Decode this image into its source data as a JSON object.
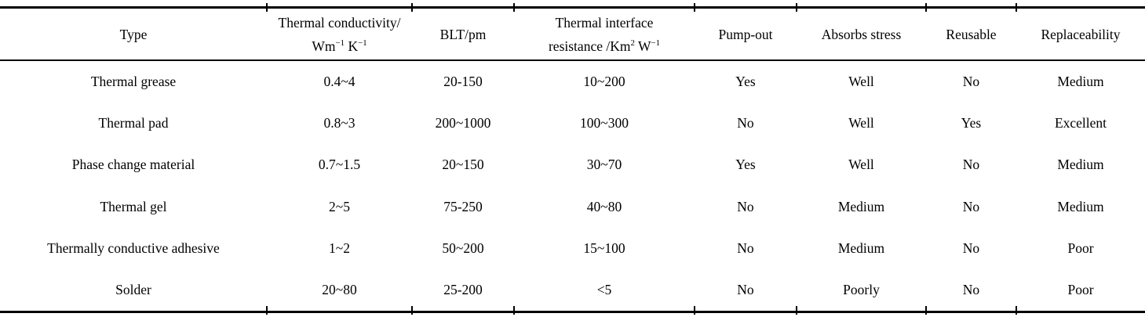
{
  "page": {
    "background_color": "#ffffff",
    "text_color": "#000000",
    "rule_color": "#000000"
  },
  "table": {
    "column_keys": [
      "type",
      "conductivity",
      "blt",
      "resistance",
      "pump_out",
      "absorbs_stress",
      "reusable",
      "replaceability"
    ],
    "header": {
      "type": "Type",
      "conductivity_line1": "Thermal conductivity/",
      "conductivity_unit_a": "Wm",
      "conductivity_sup_a": "−1",
      "conductivity_unit_b": " K",
      "conductivity_sup_b": "−1",
      "blt": "BLT/pm",
      "resistance_line1": "Thermal interface",
      "resistance_unit_a": "resistance /Km",
      "resistance_sup_a": "2",
      "resistance_unit_b": " W",
      "resistance_sup_b": "−1",
      "pump_out": "Pump-out",
      "absorbs_stress": "Absorbs stress",
      "reusable": "Reusable",
      "replaceability": "Replaceability"
    },
    "rows": [
      {
        "type": "Thermal grease",
        "conductivity": "0.4~4",
        "blt": "20-150",
        "resistance": "10~200",
        "pump_out": "Yes",
        "absorbs_stress": "Well",
        "reusable": "No",
        "replaceability": "Medium"
      },
      {
        "type": "Thermal pad",
        "conductivity": "0.8~3",
        "blt": "200~1000",
        "resistance": "100~300",
        "pump_out": "No",
        "absorbs_stress": "Well",
        "reusable": "Yes",
        "replaceability": "Excellent"
      },
      {
        "type": "Phase change material",
        "conductivity": "0.7~1.5",
        "blt": "20~150",
        "resistance": "30~70",
        "pump_out": "Yes",
        "absorbs_stress": "Well",
        "reusable": "No",
        "replaceability": "Medium"
      },
      {
        "type": "Thermal gel",
        "conductivity": "2~5",
        "blt": "75-250",
        "resistance": "40~80",
        "pump_out": "No",
        "absorbs_stress": "Medium",
        "reusable": "No",
        "replaceability": "Medium"
      },
      {
        "type": "Thermally conductive adhesive",
        "conductivity": "1~2",
        "blt": "50~200",
        "resistance": "15~100",
        "pump_out": "No",
        "absorbs_stress": "Medium",
        "reusable": "No",
        "replaceability": "Poor"
      },
      {
        "type": "Solder",
        "conductivity": "20~80",
        "blt": "25-200",
        "resistance": "<5",
        "pump_out": "No",
        "absorbs_stress": "Poorly",
        "reusable": "No",
        "replaceability": "Poor"
      }
    ]
  }
}
